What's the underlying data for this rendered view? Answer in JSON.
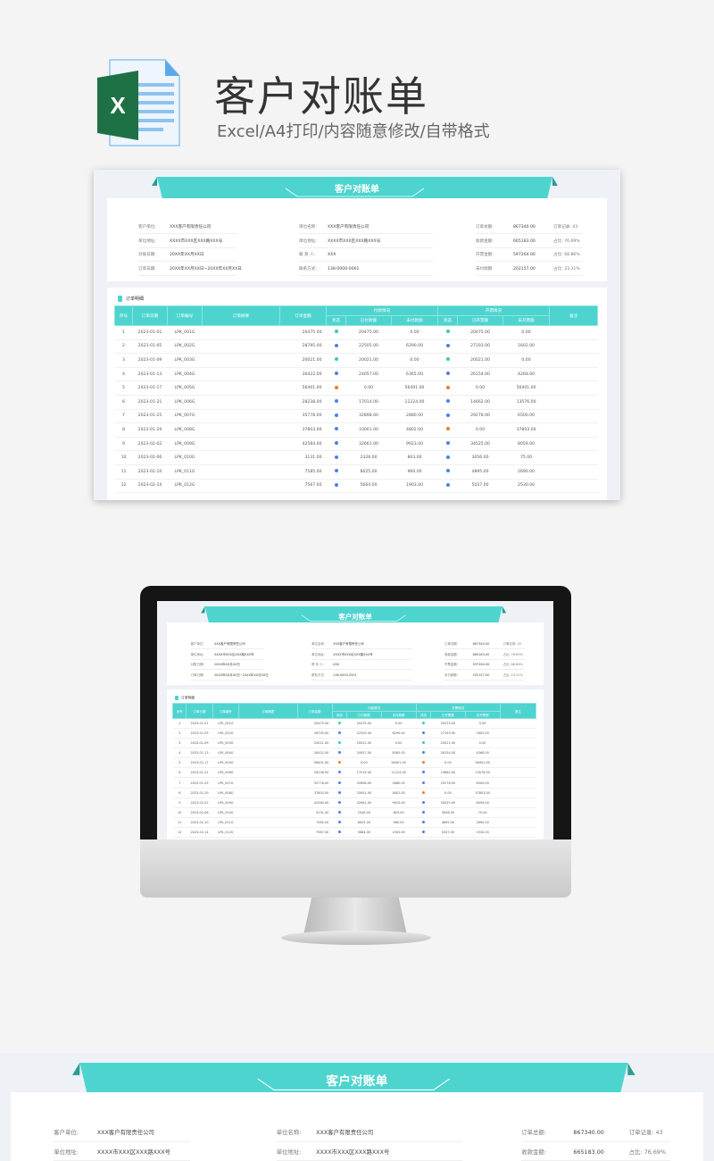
{
  "header": {
    "title": "客户对账单",
    "subtitle": "Excel/A4打印/内容随意修改/自带格式",
    "icon": "excel-file-icon",
    "icon_letter": "X"
  },
  "colors": {
    "accent": "#4dd4cf",
    "accent_dark": "#2a9d92",
    "status_paid": "#35c9c1",
    "status_partial": "#4a7ff0",
    "status_unpaid": "#f07a2a"
  },
  "sheet": {
    "title": "客户对账单",
    "info_col1": [
      {
        "label": "客户单位:",
        "value": "XXX客户有限责任公司"
      },
      {
        "label": "单位地址:",
        "value": "XXXX市XXX区XXX路XXX号"
      },
      {
        "label": "对账日期:",
        "value": "20XX年XX月XX日"
      },
      {
        "label": "订单日期:",
        "value": "20XX年XX月XX日~20XX年XX月XX日"
      }
    ],
    "info_col2": [
      {
        "label": "单位名称:",
        "value": "XXX客户有限责任公司"
      },
      {
        "label": "单位地址:",
        "value": "XXXX市XXX区XXX路XXX号"
      },
      {
        "label": "联 系 人:",
        "value": "XXX"
      },
      {
        "label": "联系方式:",
        "value": "138-0000-0001"
      }
    ],
    "info_col3": [
      {
        "label": "订单总额:",
        "value": "867340.00",
        "extra": "订单记录: 43"
      },
      {
        "label": "收款金额:",
        "value": "665183.00",
        "extra": "占比: 76.69%"
      },
      {
        "label": "开票金额:",
        "value": "597264.00",
        "extra": "占比: 68.86%"
      },
      {
        "label": "未付款额:",
        "value": "202157.00",
        "extra": "占比: 23.31%"
      }
    ],
    "section_title": "订单明细",
    "headers": {
      "no": "序号",
      "date": "订单日期",
      "code": "订单编号",
      "summary": "订单摘要",
      "amount": "订单金额",
      "pay_group": "付款情况",
      "invoice_group": "开票情况",
      "note": "备注",
      "status": "状态",
      "paid": "已付款额",
      "unpaid": "未付款额",
      "invoiced": "已开票额",
      "uninvoiced": "未开票额"
    },
    "rows": [
      {
        "no": "1",
        "date": "2023-01-01",
        "code": "LPK_001G",
        "amount": "20475.00",
        "pay_status": "paid",
        "paid": "20475.00",
        "unpaid": "0.00",
        "inv_status": "paid",
        "invoiced": "20475.00",
        "uninvoiced": "0.00"
      },
      {
        "no": "2",
        "date": "2023-01-05",
        "code": "LPK_002G",
        "amount": "28795.00",
        "pay_status": "partial",
        "paid": "22505.00",
        "unpaid": "6290.00",
        "inv_status": "partial",
        "invoiced": "27193.00",
        "uninvoiced": "1602.00"
      },
      {
        "no": "3",
        "date": "2023-01-09",
        "code": "LPK_003G",
        "amount": "20021.00",
        "pay_status": "paid",
        "paid": "20021.00",
        "unpaid": "0.00",
        "inv_status": "paid",
        "invoiced": "20021.00",
        "uninvoiced": "0.00"
      },
      {
        "no": "4",
        "date": "2023-01-13",
        "code": "LPK_004G",
        "amount": "30422.00",
        "pay_status": "partial",
        "paid": "24057.00",
        "unpaid": "6365.00",
        "inv_status": "partial",
        "invoiced": "26154.00",
        "uninvoiced": "4268.00"
      },
      {
        "no": "5",
        "date": "2023-01-17",
        "code": "LPK_005G",
        "amount": "56401.00",
        "pay_status": "unpaid",
        "paid": "0.00",
        "unpaid": "56401.00",
        "inv_status": "unpaid",
        "invoiced": "0.00",
        "uninvoiced": "56401.00"
      },
      {
        "no": "6",
        "date": "2023-01-21",
        "code": "LPK_006G",
        "amount": "28238.00",
        "pay_status": "partial",
        "paid": "17014.00",
        "unpaid": "11224.00",
        "inv_status": "partial",
        "invoiced": "14662.00",
        "uninvoiced": "13576.00"
      },
      {
        "no": "7",
        "date": "2023-01-25",
        "code": "LPK_007G",
        "amount": "35778.00",
        "pay_status": "partial",
        "paid": "32898.00",
        "unpaid": "2880.00",
        "inv_status": "partial",
        "invoiced": "29278.00",
        "uninvoiced": "6500.00"
      },
      {
        "no": "8",
        "date": "2023-01-29",
        "code": "LPK_008G",
        "amount": "37803.00",
        "pay_status": "partial",
        "paid": "33001.00",
        "unpaid": "4802.00",
        "inv_status": "unpaid",
        "invoiced": "0.00",
        "uninvoiced": "37803.00"
      },
      {
        "no": "9",
        "date": "2023-02-02",
        "code": "LPK_009G",
        "amount": "42584.00",
        "pay_status": "partial",
        "paid": "32661.00",
        "unpaid": "9923.00",
        "inv_status": "partial",
        "invoiced": "34525.00",
        "uninvoiced": "8059.00"
      },
      {
        "no": "10",
        "date": "2023-02-06",
        "code": "LPK_010G",
        "amount": "3131.00",
        "pay_status": "partial",
        "paid": "2328.00",
        "unpaid": "803.00",
        "inv_status": "partial",
        "invoiced": "3056.00",
        "uninvoiced": "75.00"
      },
      {
        "no": "11",
        "date": "2023-02-10",
        "code": "LPK_011G",
        "amount": "7585.00",
        "pay_status": "partial",
        "paid": "6625.00",
        "unpaid": "960.00",
        "inv_status": "partial",
        "invoiced": "4895.00",
        "uninvoiced": "2690.00"
      },
      {
        "no": "12",
        "date": "2023-02-14",
        "code": "LPK_012G",
        "amount": "7567.00",
        "pay_status": "partial",
        "paid": "5664.00",
        "unpaid": "1903.00",
        "inv_status": "partial",
        "invoiced": "5037.00",
        "uninvoiced": "2530.00"
      }
    ]
  }
}
